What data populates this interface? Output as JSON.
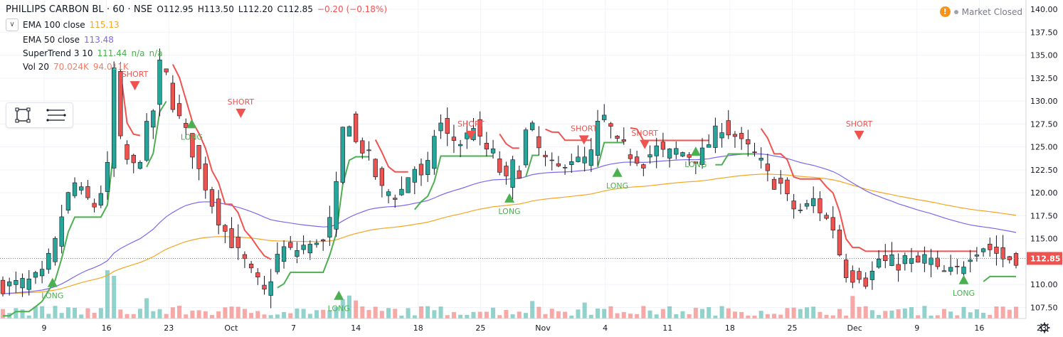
{
  "header": {
    "symbol": "PHILLIPS CARBON BL · 60 · NSE",
    "open": "O112.95",
    "high": "H113.50",
    "low": "L112.20",
    "close": "C112.85",
    "change": "−0.20 (−0.18%)",
    "change_color": "#ef5350",
    "market_status": "Market Closed"
  },
  "indicators": [
    {
      "name": "EMA 100 close",
      "values": [
        "115.13"
      ],
      "color": "#f5a623"
    },
    {
      "name": "EMA 50 close",
      "values": [
        "113.48"
      ],
      "color": "#7b68ee"
    },
    {
      "name": "SuperTrend 3 10",
      "values": [
        "111.44",
        "n/a",
        "n/a"
      ],
      "color": "#4caf50"
    },
    {
      "name": "Vol 20",
      "values": [
        "70.024K",
        "94.011K"
      ],
      "color": "#f57c64"
    }
  ],
  "toolbox": {
    "icons": [
      "rectangle-select-icon",
      "menu-lines-icon"
    ]
  },
  "chart_data": {
    "type": "candlestick",
    "instrument": "PHILLIPS CARBON BL",
    "interval": "60",
    "exchange": "NSE",
    "y_axis": {
      "min": 107.5,
      "max": 140.0,
      "ticks": [
        "140.00",
        "137.50",
        "135.00",
        "132.50",
        "130.00",
        "127.50",
        "125.00",
        "122.50",
        "120.00",
        "117.50",
        "115.00",
        "112.50",
        "110.00",
        "107.50"
      ],
      "position": "right"
    },
    "x_axis_labels": [
      "9",
      "16",
      "23",
      "Oct",
      "7",
      "14",
      "18",
      "25",
      "Nov",
      "4",
      "11",
      "18",
      "25",
      "Dec",
      "9",
      "16",
      "23"
    ],
    "last_price": {
      "value": 112.85,
      "label": "112.85",
      "color": "#ef5350"
    },
    "close_path": [
      [
        0,
        109.8
      ],
      [
        4,
        110.3
      ],
      [
        6,
        111
      ],
      [
        8,
        114.5
      ],
      [
        9.5,
        119
      ],
      [
        11,
        121
      ],
      [
        12.5,
        119.5
      ],
      [
        14,
        118.6
      ],
      [
        15.5,
        121
      ],
      [
        16.4,
        124
      ],
      [
        16.8,
        133
      ],
      [
        17.3,
        134
      ],
      [
        17.7,
        127
      ],
      [
        18.2,
        124.5
      ],
      [
        19,
        123.5
      ],
      [
        20,
        122.8
      ],
      [
        21,
        124
      ],
      [
        22,
        127
      ],
      [
        23,
        129
      ],
      [
        23.6,
        132
      ],
      [
        24.2,
        134.8
      ],
      [
        24.8,
        133.5
      ],
      [
        25.6,
        130.5
      ],
      [
        26.4,
        129
      ],
      [
        27,
        128
      ],
      [
        28,
        126.5
      ],
      [
        29,
        124.5
      ],
      [
        30,
        122.4
      ],
      [
        31,
        120.8
      ],
      [
        32,
        118.9
      ],
      [
        33,
        117.2
      ],
      [
        34,
        115.8
      ],
      [
        35,
        114.6
      ],
      [
        36,
        113.4
      ],
      [
        37,
        112.4
      ],
      [
        38,
        111.2
      ],
      [
        39,
        110.2
      ],
      [
        40.2,
        108.9
      ],
      [
        41,
        110.8
      ],
      [
        42,
        113.1
      ],
      [
        43,
        113.9
      ],
      [
        44,
        113.6
      ],
      [
        45,
        113.8
      ],
      [
        46,
        114.2
      ],
      [
        47,
        114
      ],
      [
        48,
        115
      ],
      [
        49,
        114.5
      ],
      [
        50,
        116.8
      ],
      [
        51,
        120.5
      ],
      [
        52,
        126.8
      ],
      [
        52.6,
        129.2
      ],
      [
        53.3,
        126.9
      ],
      [
        54,
        125.4
      ],
      [
        55,
        124.8
      ],
      [
        56,
        123.8
      ],
      [
        57,
        121.9
      ],
      [
        58,
        120.3
      ],
      [
        59,
        120.1
      ],
      [
        60,
        119.8
      ],
      [
        61,
        120.3
      ],
      [
        62,
        121.8
      ],
      [
        63,
        122.7
      ],
      [
        64,
        121.5
      ],
      [
        65,
        122.8
      ],
      [
        66,
        126.4
      ],
      [
        67,
        127.5
      ],
      [
        68,
        126.1
      ],
      [
        69,
        125.8
      ],
      [
        70,
        125.5
      ],
      [
        71,
        126.2
      ],
      [
        72,
        127.5
      ],
      [
        73,
        125.5
      ],
      [
        73.8,
        124.8
      ],
      [
        75,
        124.2
      ],
      [
        76,
        122.4
      ],
      [
        77,
        121.2
      ],
      [
        78,
        123
      ],
      [
        79,
        122.4
      ],
      [
        79.8,
        126.2
      ],
      [
        80.6,
        127.6
      ],
      [
        81.4,
        126.2
      ],
      [
        82,
        124.7
      ],
      [
        83,
        123.5
      ],
      [
        84,
        122.8
      ],
      [
        85,
        122.6
      ],
      [
        86,
        123.5
      ],
      [
        87,
        123.8
      ],
      [
        88,
        123.4
      ],
      [
        89,
        123.6
      ],
      [
        90,
        124.2
      ],
      [
        91,
        127.3
      ],
      [
        92,
        128.1
      ],
      [
        93,
        126.9
      ],
      [
        94,
        125.2
      ],
      [
        95,
        124.9
      ],
      [
        96,
        124.2
      ],
      [
        97,
        123.8
      ],
      [
        98,
        123.4
      ],
      [
        99,
        124.2
      ],
      [
        100,
        124.8
      ],
      [
        101,
        124.3
      ],
      [
        102,
        124.3
      ],
      [
        103,
        124.6
      ],
      [
        104,
        124.4
      ],
      [
        105,
        124.1
      ],
      [
        106,
        123.8
      ],
      [
        107,
        124.3
      ],
      [
        108,
        125.4
      ],
      [
        109,
        126.5
      ],
      [
        110,
        127.3
      ],
      [
        111,
        126.7
      ],
      [
        112,
        126.2
      ],
      [
        113,
        125.3
      ],
      [
        114,
        124.8
      ],
      [
        115,
        124.1
      ],
      [
        116,
        123.2
      ],
      [
        117,
        121.9
      ],
      [
        118,
        121.1
      ],
      [
        119,
        120.9
      ],
      [
        120,
        119.3
      ],
      [
        121,
        118.3
      ],
      [
        122,
        118.1
      ],
      [
        123,
        118.5
      ],
      [
        124,
        119.2
      ],
      [
        125,
        118.1
      ],
      [
        126,
        117.1
      ],
      [
        127,
        116.2
      ],
      [
        128,
        113.4
      ],
      [
        129,
        111.3
      ],
      [
        130,
        110.9
      ],
      [
        131,
        111.2
      ],
      [
        132,
        110.4
      ],
      [
        133,
        111.3
      ],
      [
        134,
        112.8
      ],
      [
        135,
        112.4
      ],
      [
        136,
        112.5
      ],
      [
        137,
        112.2
      ],
      [
        138,
        112.8
      ],
      [
        139,
        112.4
      ],
      [
        140,
        112.3
      ],
      [
        141,
        112.9
      ],
      [
        142,
        112.6
      ],
      [
        143,
        111.4
      ],
      [
        144,
        111.2
      ],
      [
        145,
        111.3
      ],
      [
        146,
        111.6
      ],
      [
        147,
        112.4
      ],
      [
        148,
        113.4
      ],
      [
        149,
        113.9
      ],
      [
        150,
        114.2
      ],
      [
        151,
        113.9
      ],
      [
        152,
        113.5
      ],
      [
        153,
        112.85
      ]
    ],
    "series": [
      {
        "name": "EMA 100 close",
        "color": "#f5a623",
        "last": 115.13
      },
      {
        "name": "EMA 50 close",
        "color": "#7b68ee",
        "last": 113.48
      },
      {
        "name": "SuperTrend 3 10",
        "color": "#4caf50",
        "last": 111.44
      }
    ],
    "signals": [
      {
        "type": "LONG",
        "bar": 7.6,
        "price": 110.2
      },
      {
        "type": "SHORT",
        "bar": 20.2,
        "price": 131.7
      },
      {
        "type": "LONG",
        "bar": 28.9,
        "price": 127.5
      },
      {
        "type": "SHORT",
        "bar": 36.4,
        "price": 128.7
      },
      {
        "type": "LONG",
        "bar": 51.4,
        "price": 108.8
      },
      {
        "type": "SHORT",
        "bar": 71.6,
        "price": 126.3
      },
      {
        "type": "LONG",
        "bar": 77.5,
        "price": 119.4
      },
      {
        "type": "SHORT",
        "bar": 88.9,
        "price": 125.8
      },
      {
        "type": "LONG",
        "bar": 94.0,
        "price": 122.2
      },
      {
        "type": "SHORT",
        "bar": 98.2,
        "price": 125.3
      },
      {
        "type": "LONG",
        "bar": 106.0,
        "price": 124.5
      },
      {
        "type": "SHORT",
        "bar": 131.0,
        "price": 126.3
      },
      {
        "type": "LONG",
        "bar": 147.0,
        "price": 110.5
      }
    ],
    "grid": true,
    "legend": "top-left"
  }
}
